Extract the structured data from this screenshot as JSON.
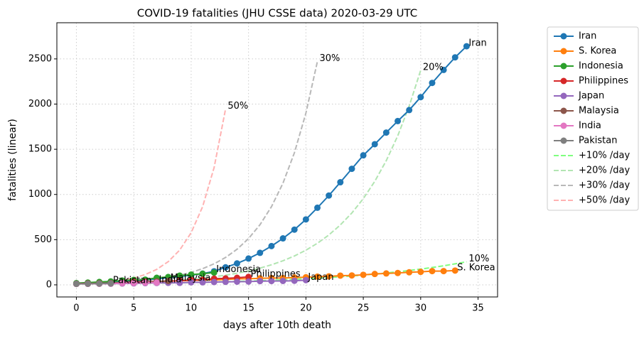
{
  "chart_data": {
    "type": "line",
    "title": "COVID-19 fatalities (JHU CSSE data) 2020-03-29 UTC",
    "x_label": "days after 10th death",
    "y_label": "fatalities (linear)",
    "x": [
      0,
      1,
      2,
      3,
      4,
      5,
      6,
      7,
      8,
      9,
      10,
      11,
      12,
      13,
      14,
      15,
      16,
      17,
      18,
      19,
      20,
      21,
      22,
      23,
      24,
      25,
      26,
      27,
      28,
      29,
      30,
      31,
      32,
      33,
      34,
      35
    ],
    "xlim": [
      -1.7,
      36.7
    ],
    "xticks": [
      0,
      5,
      10,
      15,
      20,
      25,
      30,
      35
    ],
    "ylim": [
      -134,
      2900
    ],
    "yticks": [
      0,
      500,
      1000,
      1500,
      2000,
      2500
    ],
    "grid": true,
    "legend": "outside-right",
    "series": [
      {
        "name": "+10% /day",
        "color": "#7fff7f",
        "dashed": true,
        "end_label": "10%",
        "values": [
          10,
          11,
          12.1,
          13.3,
          14.6,
          16.1,
          17.7,
          19.5,
          21.4,
          23.6,
          25.9,
          28.5,
          31.4,
          34.5,
          38.0,
          41.8,
          45.9,
          50.5,
          55.6,
          61.2,
          67.3,
          74.0,
          81.4,
          89.5,
          98.5,
          108.3,
          119.2,
          131.1,
          144.2,
          158.6,
          174.5,
          191.9,
          211.1,
          232.3,
          255.5,
          null
        ]
      },
      {
        "name": "+20% /day",
        "color": "#b2e5b2",
        "dashed": true,
        "end_label": "20%",
        "values": [
          10,
          12,
          14.4,
          17.3,
          20.7,
          24.9,
          29.9,
          35.8,
          43.0,
          51.6,
          61.9,
          74.3,
          89.2,
          107.0,
          128.4,
          154.1,
          184.9,
          221.9,
          266.2,
          319.5,
          383.4,
          460.1,
          552.0,
          662.5,
          794.9,
          953.9,
          1144.8,
          1373.7,
          1648.4,
          1978.1,
          2373.8,
          null,
          null,
          null,
          null,
          null
        ]
      },
      {
        "name": "+30% /day",
        "color": "#b8b8b8",
        "dashed": true,
        "end_label": "30%",
        "values": [
          10,
          13,
          16.9,
          22.0,
          28.6,
          37.1,
          48.3,
          62.7,
          81.6,
          106.0,
          137.9,
          179.2,
          233.0,
          302.9,
          393.7,
          511.9,
          665.4,
          865.0,
          1124.6,
          1462.0,
          1900.5,
          2470.7,
          null,
          null,
          null,
          null,
          null,
          null,
          null,
          null,
          null,
          null,
          null,
          null,
          null,
          null
        ]
      },
      {
        "name": "+50% /day",
        "color": "#ffb2b2",
        "dashed": true,
        "end_label": "50%",
        "values": [
          10,
          15,
          22.5,
          33.8,
          50.6,
          75.9,
          113.9,
          170.9,
          256.3,
          384.4,
          576.7,
          865.0,
          1297.5,
          1946.2,
          null,
          null,
          null,
          null,
          null,
          null,
          null,
          null,
          null,
          null,
          null,
          null,
          null,
          null,
          null,
          null,
          null,
          null,
          null,
          null,
          null,
          null
        ]
      },
      {
        "name": "Iran",
        "color": "#1f77b4",
        "values": [
          16,
          19,
          22,
          26,
          34,
          43,
          54,
          66,
          77,
          92,
          107,
          124,
          150,
          194,
          237,
          291,
          354,
          429,
          514,
          611,
          724,
          853,
          988,
          1135,
          1284,
          1433,
          1556,
          1685,
          1812,
          1934,
          2077,
          2234,
          2378,
          2517,
          2640,
          null
        ]
      },
      {
        "name": "S. Korea",
        "color": "#ff7f0e",
        "values": [
          11,
          12,
          13,
          16,
          17,
          28,
          32,
          35,
          42,
          44,
          50,
          53,
          54,
          60,
          66,
          67,
          72,
          75,
          75,
          81,
          84,
          91,
          94,
          102,
          104,
          111,
          120,
          126,
          131,
          139,
          144,
          152,
          152,
          158,
          null,
          null
        ]
      },
      {
        "name": "Indonesia",
        "color": "#2ca02c",
        "values": [
          19,
          25,
          32,
          38,
          48,
          55,
          58,
          78,
          87,
          102,
          114,
          122,
          136,
          null,
          null,
          null,
          null,
          null,
          null,
          null,
          null,
          null,
          null,
          null,
          null,
          null,
          null,
          null,
          null,
          null,
          null,
          null,
          null,
          null,
          null,
          null
        ]
      },
      {
        "name": "Philippines",
        "color": "#d62728",
        "values": [
          12,
          15,
          17,
          19,
          25,
          33,
          35,
          38,
          41,
          45,
          54,
          56,
          68,
          71,
          78,
          88,
          null,
          null,
          null,
          null,
          null,
          null,
          null,
          null,
          null,
          null,
          null,
          null,
          null,
          null,
          null,
          null,
          null,
          null,
          null,
          null
        ]
      },
      {
        "name": "Japan",
        "color": "#9467bd",
        "values": [
          10,
          11,
          12,
          12,
          15,
          16,
          19,
          21,
          22,
          22,
          28,
          28,
          31,
          33,
          35,
          36,
          41,
          42,
          43,
          45,
          52,
          null,
          null,
          null,
          null,
          null,
          null,
          null,
          null,
          null,
          null,
          null,
          null,
          null,
          null,
          null
        ]
      },
      {
        "name": "Malaysia",
        "color": "#8c564b",
        "values": [
          10,
          14,
          16,
          20,
          23,
          26,
          27,
          37,
          43,
          null,
          null,
          null,
          null,
          null,
          null,
          null,
          null,
          null,
          null,
          null,
          null,
          null,
          null,
          null,
          null,
          null,
          null,
          null,
          null,
          null,
          null,
          null,
          null,
          null,
          null,
          null
        ]
      },
      {
        "name": "India",
        "color": "#e377c2",
        "values": [
          10,
          11,
          12,
          13,
          19,
          20,
          24,
          25,
          null,
          null,
          null,
          null,
          null,
          null,
          null,
          null,
          null,
          null,
          null,
          null,
          null,
          null,
          null,
          null,
          null,
          null,
          null,
          null,
          null,
          null,
          null,
          null,
          null,
          null,
          null,
          null
        ]
      },
      {
        "name": "Pakistan",
        "color": "#7f7f7f",
        "values": [
          11,
          12,
          14,
          16,
          null,
          null,
          null,
          null,
          null,
          null,
          null,
          null,
          null,
          null,
          null,
          null,
          null,
          null,
          null,
          null,
          null,
          null,
          null,
          null,
          null,
          null,
          null,
          null,
          null,
          null,
          null,
          null,
          null,
          null,
          null,
          null
        ]
      }
    ]
  }
}
